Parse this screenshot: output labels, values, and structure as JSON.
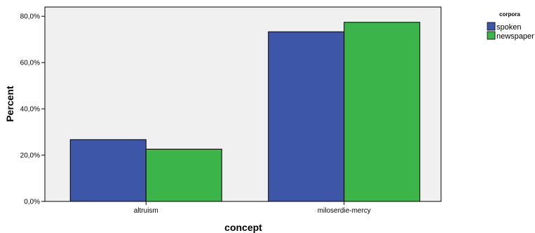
{
  "chart_data": {
    "type": "bar",
    "categories": [
      "altruism",
      "miloserdie-mercy"
    ],
    "series": [
      {
        "name": "spoken",
        "values": [
          26.7,
          73.3
        ],
        "color": "#3E56A8"
      },
      {
        "name": "newspaper",
        "values": [
          22.6,
          77.4
        ],
        "color": "#3BB54A"
      }
    ],
    "xlabel": "concept",
    "ylabel": "Percent",
    "ylim": [
      0,
      80
    ],
    "yticks": [
      0,
      20,
      40,
      60,
      80
    ],
    "ytick_labels": [
      "0,0%",
      "20,0%",
      "40,0%",
      "60,0%",
      "80,0%"
    ],
    "legend_title": "corpora",
    "legend_position": "top-right",
    "grid": false,
    "plot_background": "#F0F0F0",
    "ymax_frame": 84
  }
}
